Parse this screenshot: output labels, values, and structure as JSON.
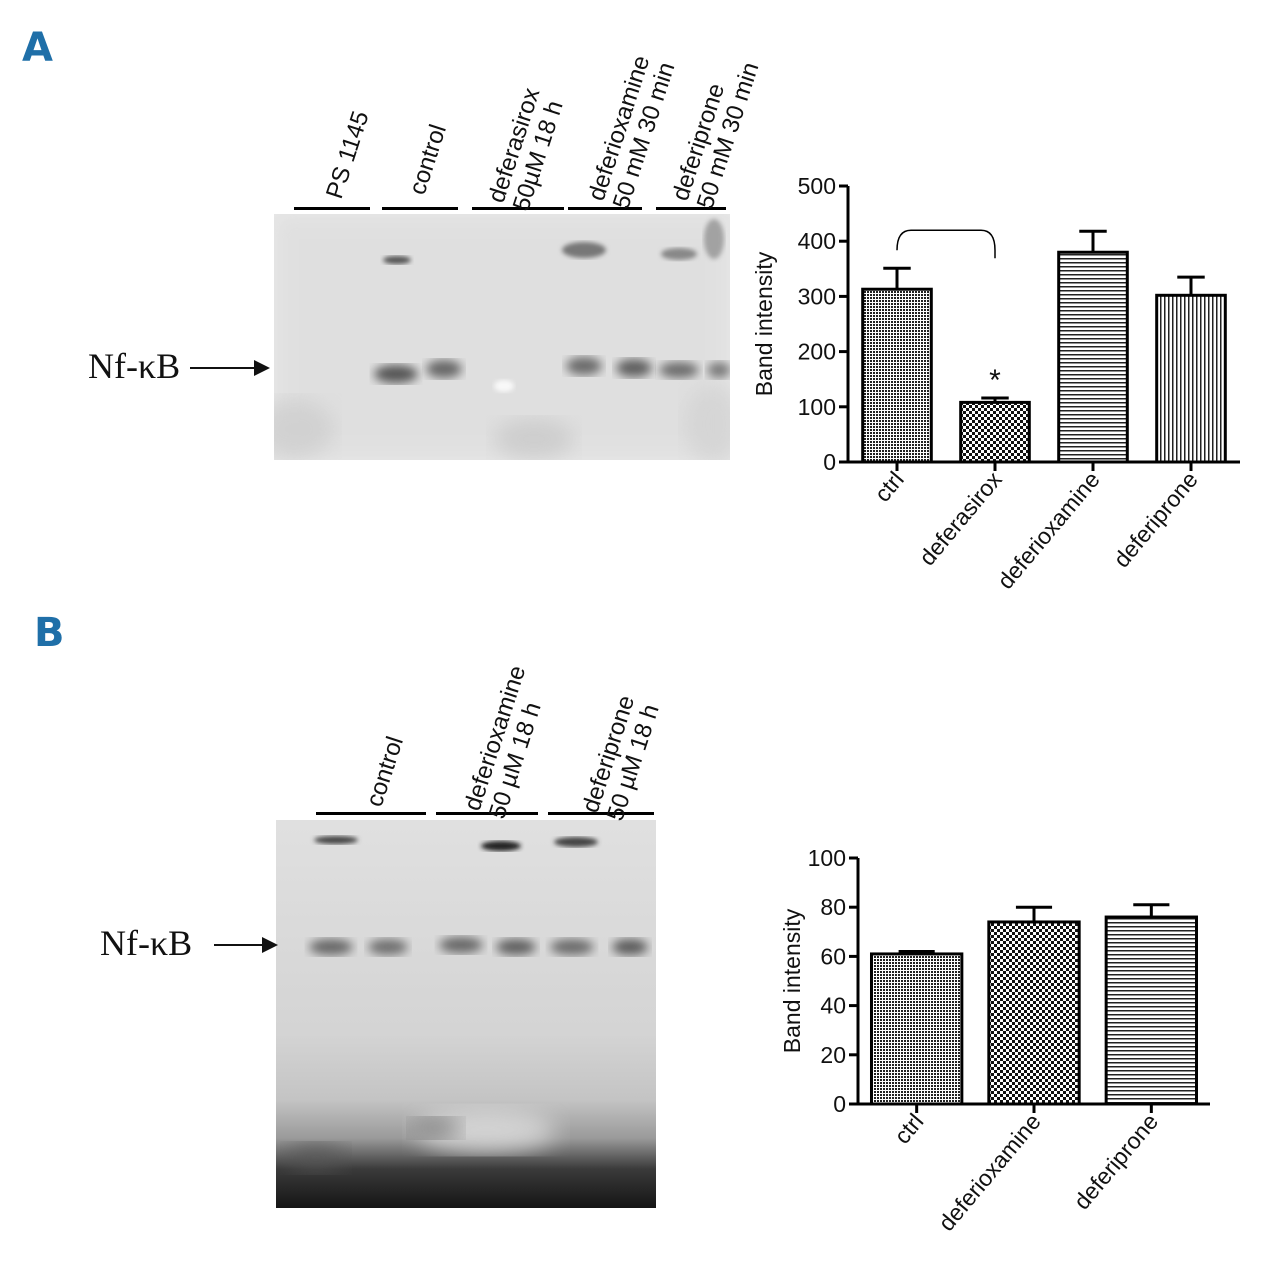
{
  "panels": [
    {
      "letter": "A",
      "color": "#1f6fa8",
      "gel": {
        "band_label": "Nf-κB",
        "lanes": [
          {
            "line1": "PS 1145",
            "line2": ""
          },
          {
            "line1": "control",
            "line2": ""
          },
          {
            "line1": "deferasirox",
            "line2": "50µM 18 h"
          },
          {
            "line1": "deferioxamine",
            "line2": "50 mM 30 min"
          },
          {
            "line1": "deferiprone",
            "line2": "50 mM 30 min"
          }
        ]
      }
    },
    {
      "letter": "B",
      "color": "#1f6fa8",
      "gel": {
        "band_label": "Nf-κB",
        "lanes": [
          {
            "line1": "control",
            "line2": ""
          },
          {
            "line1": "deferioxamine",
            "line2": "50 µM 18 h"
          },
          {
            "line1": "deferiprone",
            "line2": "50 µM 18 h"
          }
        ]
      }
    }
  ],
  "chart_data": [
    {
      "type": "bar",
      "ylabel": "Band intensity",
      "xlabel": "",
      "ylim": [
        0,
        500
      ],
      "yticks": [
        0,
        100,
        200,
        300,
        400,
        500
      ],
      "categories": [
        "ctrl",
        "deferasirox",
        "deferioxamine",
        "deferiprone"
      ],
      "values": [
        313,
        108,
        380,
        302
      ],
      "errors": [
        38,
        8,
        38,
        33
      ],
      "patterns": [
        "dense-dots",
        "checker",
        "horizontal-lines",
        "vertical-lines"
      ],
      "annotations": [
        {
          "text": "*",
          "category": "deferasirox"
        }
      ],
      "significance_bracket": [
        "ctrl",
        "deferasirox"
      ]
    },
    {
      "type": "bar",
      "ylabel": "Band intensity",
      "xlabel": "",
      "ylim": [
        0,
        100
      ],
      "yticks": [
        0,
        20,
        40,
        60,
        80,
        100
      ],
      "categories": [
        "ctrl",
        "deferioxamine",
        "deferiprone"
      ],
      "values": [
        61,
        74,
        76
      ],
      "errors": [
        1,
        6,
        5
      ],
      "patterns": [
        "dense-dots",
        "checker",
        "horizontal-lines"
      ]
    }
  ]
}
